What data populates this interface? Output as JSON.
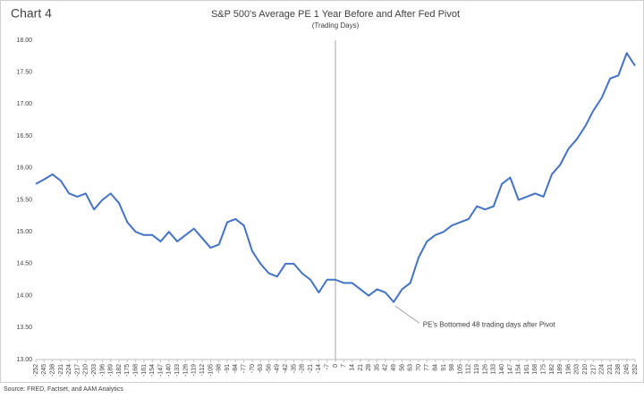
{
  "chart_data": {
    "type": "line",
    "label": "Chart 4",
    "title": "S&P 500's Average PE 1 Year Before and After Fed Pivot",
    "subtitle": "(Trading Days)",
    "source": "Source: FRED,  Factset, and AAM Analytics",
    "annotation": {
      "text": "PE's Bottomed 48 trading days after Pivot",
      "x": 48,
      "y": 13.88
    },
    "x": [
      -252,
      -245,
      -238,
      -231,
      -224,
      -217,
      -210,
      -203,
      -196,
      -189,
      -182,
      -175,
      -168,
      -161,
      -154,
      -147,
      -140,
      -133,
      -126,
      -119,
      -112,
      -105,
      -98,
      -91,
      -84,
      -77,
      -70,
      -63,
      -56,
      -49,
      -42,
      -35,
      -28,
      -21,
      -14,
      -7,
      0,
      7,
      14,
      21,
      28,
      35,
      42,
      49,
      56,
      63,
      70,
      77,
      84,
      91,
      98,
      105,
      112,
      119,
      126,
      133,
      140,
      147,
      154,
      161,
      168,
      175,
      182,
      189,
      196,
      203,
      210,
      217,
      224,
      231,
      238,
      245,
      252
    ],
    "series": [
      {
        "name": "S&P 500 Average PE",
        "color": "#4472c4",
        "values": [
          15.75,
          15.82,
          15.9,
          15.8,
          15.6,
          15.55,
          15.6,
          15.35,
          15.5,
          15.6,
          15.45,
          15.15,
          15.0,
          14.95,
          14.95,
          14.85,
          15.0,
          14.85,
          14.95,
          15.05,
          14.9,
          14.75,
          14.8,
          15.15,
          15.2,
          15.1,
          14.7,
          14.5,
          14.35,
          14.3,
          14.5,
          14.5,
          14.35,
          14.25,
          14.05,
          14.25,
          14.25,
          14.2,
          14.2,
          14.1,
          14.0,
          14.1,
          14.05,
          13.9,
          14.1,
          14.2,
          14.6,
          14.85,
          14.95,
          15.0,
          15.1,
          15.15,
          15.2,
          15.4,
          15.35,
          15.4,
          15.75,
          15.85,
          15.5,
          15.55,
          15.6,
          15.55,
          15.9,
          16.05,
          16.3,
          16.45,
          16.65,
          16.9,
          17.1,
          17.4,
          17.45,
          17.8,
          17.6
        ]
      }
    ],
    "xlim": [
      -252,
      252
    ],
    "xticks": [
      -252,
      -245,
      -238,
      -231,
      -224,
      -217,
      -210,
      -203,
      -196,
      -189,
      -182,
      -175,
      -168,
      -161,
      -154,
      -147,
      -140,
      -133,
      -126,
      -119,
      -112,
      -105,
      -98,
      -91,
      -84,
      -77,
      -70,
      -63,
      -56,
      -49,
      -42,
      -35,
      -28,
      -21,
      -14,
      -7,
      0,
      7,
      14,
      21,
      28,
      35,
      42,
      49,
      56,
      63,
      70,
      77,
      84,
      91,
      98,
      105,
      112,
      119,
      126,
      133,
      140,
      147,
      154,
      161,
      168,
      175,
      182,
      189,
      196,
      203,
      210,
      217,
      224,
      231,
      238,
      245,
      252
    ],
    "ylim": [
      13.0,
      18.0
    ],
    "yticks": [
      {
        "value": 13.0,
        "label": "13.00"
      },
      {
        "value": 13.5,
        "label": "13.50"
      },
      {
        "value": 14.0,
        "label": "14.00"
      },
      {
        "value": 14.5,
        "label": "14.50"
      },
      {
        "value": 15.0,
        "label": "15.00"
      },
      {
        "value": 15.5,
        "label": "15.50"
      },
      {
        "value": 16.0,
        "label": "16.00"
      },
      {
        "value": 16.5,
        "label": "16.50"
      },
      {
        "value": 17.0,
        "label": "17.00"
      },
      {
        "value": 17.5,
        "label": "17.50"
      },
      {
        "value": 18.0,
        "label": "18.00"
      }
    ],
    "grid": false
  }
}
